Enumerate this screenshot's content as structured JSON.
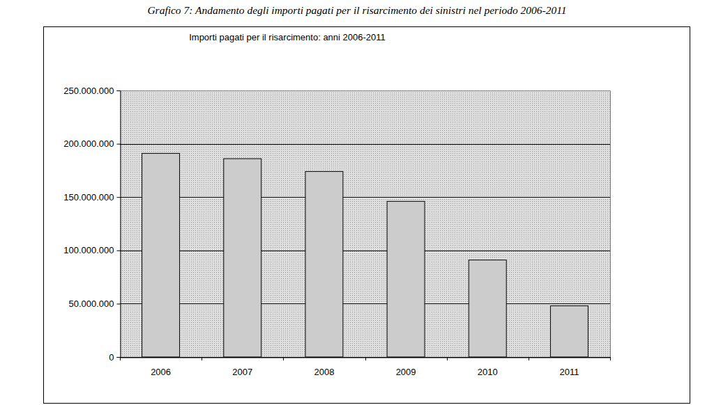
{
  "chart_data": {
    "type": "bar",
    "caption": "Grafico 7: Andamento degli importi pagati per il risarcimento dei sinistri nel periodo 2006-2011",
    "title": "Importi pagati per il risarcimento: anni 2006-2011",
    "categories": [
      "2006",
      "2007",
      "2008",
      "2009",
      "2010",
      "2011"
    ],
    "values": [
      191000000,
      186000000,
      174000000,
      146000000,
      91000000,
      48000000
    ],
    "color": "#cccccc",
    "ylim": [
      0,
      250000000
    ],
    "yticks": [
      0,
      {
        "value": 50000000,
        "label": "50.000.000"
      },
      {
        "value": 100000000,
        "label": "100.000.000"
      },
      {
        "value": 150000000,
        "label": "150.000.000"
      },
      {
        "value": 200000000,
        "label": "200.000.000"
      },
      {
        "value": 250000000,
        "label": "250.000.000"
      }
    ],
    "grid": true
  }
}
